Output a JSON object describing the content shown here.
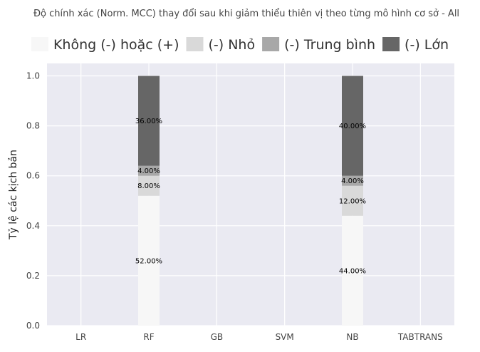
{
  "chart_data": {
    "type": "bar",
    "stacked": true,
    "title": "Độ chính xác (Norm. MCC) thay đổi sau khi giảm thiểu thiên vị theo từng mô hình cơ sở - All",
    "xlabel": "",
    "ylabel": "Tỷ lệ các kịch bản",
    "categories": [
      "LR",
      "RF",
      "GB",
      "SVM",
      "NB",
      "TABTRANS"
    ],
    "ylim": [
      0,
      1.05
    ],
    "yticks": [
      "0.0",
      "0.2",
      "0.4",
      "0.6",
      "0.8",
      "1.0"
    ],
    "grid": true,
    "legend_position": "top",
    "series": [
      {
        "name": "Không (-) hoặc (+)",
        "color": "#f7f7f7",
        "values": [
          0,
          0.52,
          0,
          0,
          0.44,
          0
        ],
        "labels": [
          "",
          "52.00%",
          "",
          "",
          "44.00%",
          ""
        ]
      },
      {
        "name": "(-) Nhỏ",
        "color": "#d9d9d9",
        "values": [
          0,
          0.08,
          0,
          0,
          0.12,
          0
        ],
        "labels": [
          "",
          "8.00%",
          "",
          "",
          "12.00%",
          ""
        ]
      },
      {
        "name": "(-) Trung bình",
        "color": "#a8a8a8",
        "values": [
          0,
          0.04,
          0,
          0,
          0.04,
          0
        ],
        "labels": [
          "",
          "4.00%",
          "",
          "",
          "4.00%",
          ""
        ]
      },
      {
        "name": "(-) Lớn",
        "color": "#666666",
        "values": [
          0,
          0.36,
          0,
          0,
          0.4,
          0
        ],
        "labels": [
          "",
          "36.00%",
          "",
          "",
          "40.00%",
          ""
        ]
      }
    ]
  }
}
